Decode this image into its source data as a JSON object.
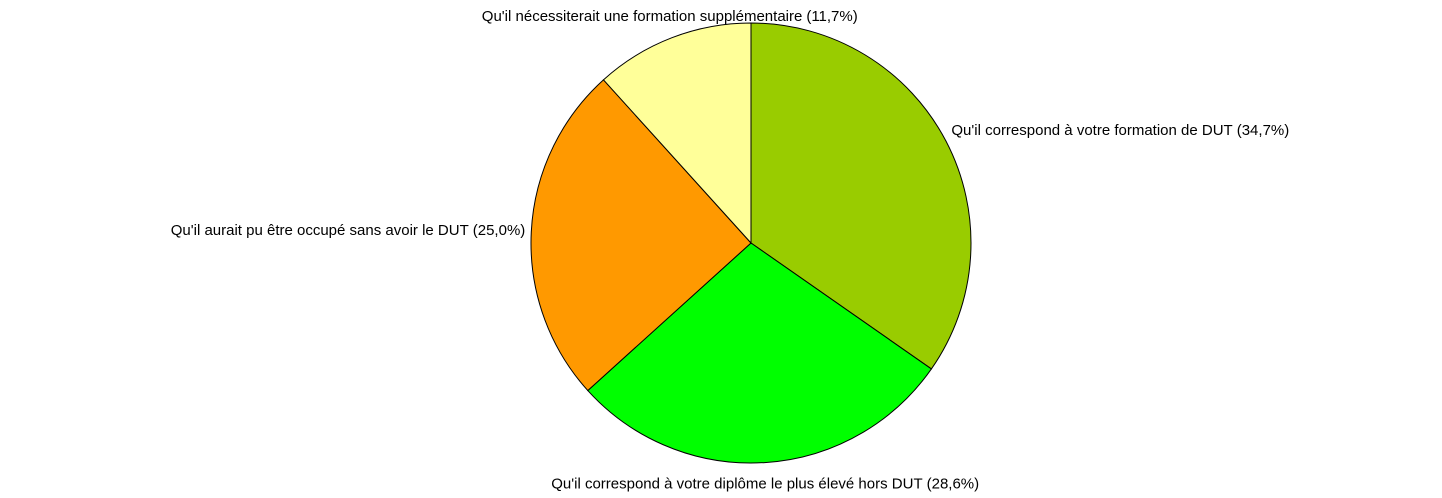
{
  "chart_data": {
    "type": "pie",
    "categories": [
      "Qu'il correspond à votre formation de DUT",
      "Qu'il correspond à votre diplôme le plus élevé hors DUT",
      "Qu'il aurait pu être occupé sans avoir le DUT",
      "Qu'il nécessiterait une formation supplémentaire"
    ],
    "values": [
      34.7,
      28.6,
      25.0,
      11.7
    ],
    "value_labels": [
      "(34,7%)",
      "(28,6%)",
      "(25,0%)",
      "(11,7%)"
    ],
    "colors": [
      "#99cc00",
      "#00ff00",
      "#ff9900",
      "#ffff99"
    ]
  }
}
